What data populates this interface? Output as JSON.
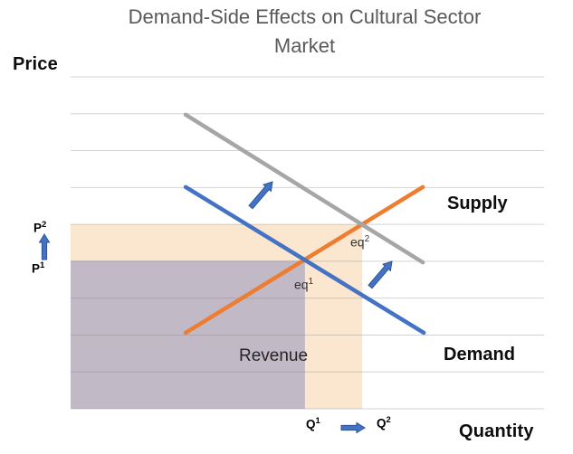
{
  "title": {
    "line1": "Demand-Side Effects on Cultural Sector",
    "line2": "Market"
  },
  "axis_labels": {
    "y": "Price",
    "x": "Quantity"
  },
  "series_labels": {
    "supply": "Supply",
    "demand": "Demand"
  },
  "annotations": {
    "revenue": "Revenue",
    "p2": {
      "base": "P",
      "sup": "2"
    },
    "p1": {
      "base": "P",
      "sup": "1"
    },
    "q1": {
      "base": "Q",
      "sup": "1"
    },
    "q2": {
      "base": "Q",
      "sup": "2"
    },
    "eq1": {
      "base": "eq",
      "sup": "1"
    },
    "eq2": {
      "base": "eq",
      "sup": "2"
    }
  },
  "colors": {
    "title_text": "#595959",
    "gridline": "#808080",
    "supply": "#ED7D31",
    "demand": "#4472C4",
    "demand_shifted": "#A6A6A6",
    "arrow_fill": "#4472C4",
    "arrow_border": "#2E5395",
    "revenue_new_area": "#FBE7CF",
    "revenue_old_area": "#C1B9C5"
  },
  "chart_data": {
    "type": "line",
    "title": "Demand-Side Effects on Cultural Sector Market",
    "xlabel": "Quantity",
    "ylabel": "Price",
    "xlim": [
      0,
      10
    ],
    "ylim": [
      0,
      10
    ],
    "axes_numeric_ticks": false,
    "legend_position": "inline-right",
    "gridlines": {
      "horizontal_count": 10,
      "vertical": false
    },
    "series": [
      {
        "id": "supply",
        "name": "Supply",
        "color": "#ED7D31",
        "x": [
          2.43,
          7.44
        ],
        "y": [
          2.29,
          6.68
        ]
      },
      {
        "id": "demand",
        "name": "Demand",
        "color": "#4472C4",
        "x": [
          2.43,
          7.46
        ],
        "y": [
          6.68,
          2.29
        ]
      },
      {
        "id": "demand-shifted",
        "name": "Demand (shifted)",
        "color": "#A6A6A6",
        "x": [
          2.43,
          7.44
        ],
        "y": [
          8.86,
          4.41
        ]
      }
    ],
    "key_values": {
      "p1": 4.46,
      "p2": 5.56,
      "q1": 4.95,
      "q2": 6.16
    },
    "equilibria": [
      {
        "label": "eq1",
        "x": 4.95,
        "y": 4.46
      },
      {
        "label": "eq2",
        "x": 6.16,
        "y": 5.56
      }
    ],
    "shaded_areas": [
      {
        "name": "revenue-after-shift",
        "x_range": [
          0,
          6.16
        ],
        "y_range": [
          0,
          5.56
        ],
        "fill": "#FBE7CF"
      },
      {
        "name": "revenue-before-shift",
        "x_range": [
          0,
          4.95
        ],
        "y_range": [
          0,
          4.46
        ],
        "fill": "#C1B9C5"
      }
    ]
  }
}
